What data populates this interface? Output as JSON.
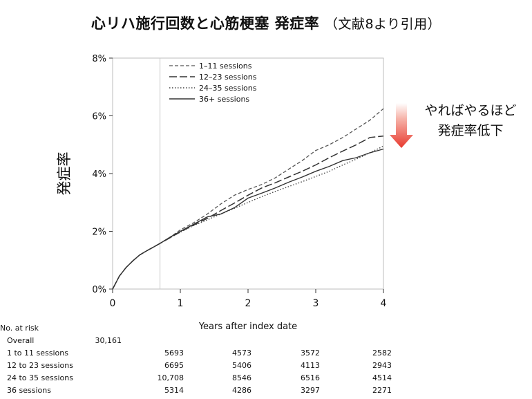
{
  "title": {
    "main": "心リハ施行回数と心筋梗塞 発症率",
    "citation": "（文献8より引用）"
  },
  "annotation": {
    "line1": "やればやるほど",
    "line2": "発症率低下",
    "arrow_color": "#e8392e"
  },
  "chart_data": {
    "type": "line",
    "title": "",
    "xlabel": "Years after index date",
    "ylabel": "発症率",
    "xlim": [
      0,
      4
    ],
    "ylim": [
      0,
      8
    ],
    "x_ticks": [
      "0",
      "1",
      "2",
      "3",
      "4"
    ],
    "y_ticks": [
      "0%",
      "2%",
      "4%",
      "6%",
      "8%"
    ],
    "grid": false,
    "legend_position": "top-left",
    "reference_line_x": 0.7,
    "series": [
      {
        "name": "1–11 sessions",
        "style": "short-dash",
        "x": [
          0,
          0.1,
          0.2,
          0.3,
          0.4,
          0.5,
          0.6,
          0.7,
          0.85,
          1.0,
          1.2,
          1.4,
          1.6,
          1.8,
          2.0,
          2.2,
          2.4,
          2.6,
          2.8,
          3.0,
          3.2,
          3.4,
          3.6,
          3.8,
          4.0
        ],
        "y": [
          0,
          0.45,
          0.75,
          0.98,
          1.18,
          1.32,
          1.45,
          1.58,
          1.8,
          2.05,
          2.3,
          2.6,
          2.95,
          3.25,
          3.45,
          3.62,
          3.85,
          4.15,
          4.45,
          4.8,
          5.0,
          5.25,
          5.55,
          5.85,
          6.25
        ]
      },
      {
        "name": "12–23 sessions",
        "style": "long-dash",
        "x": [
          0,
          0.1,
          0.2,
          0.3,
          0.4,
          0.5,
          0.6,
          0.7,
          0.85,
          1.0,
          1.2,
          1.4,
          1.6,
          1.8,
          2.0,
          2.2,
          2.4,
          2.6,
          2.8,
          3.0,
          3.2,
          3.4,
          3.6,
          3.8,
          4.0
        ],
        "y": [
          0,
          0.45,
          0.75,
          0.98,
          1.18,
          1.32,
          1.45,
          1.58,
          1.78,
          1.98,
          2.22,
          2.45,
          2.72,
          2.98,
          3.25,
          3.5,
          3.68,
          3.88,
          4.08,
          4.3,
          4.55,
          4.78,
          5.0,
          5.25,
          5.3
        ]
      },
      {
        "name": "24–35 sessions",
        "style": "dotted",
        "x": [
          0,
          0.1,
          0.2,
          0.3,
          0.4,
          0.5,
          0.6,
          0.7,
          0.85,
          1.0,
          1.2,
          1.4,
          1.6,
          1.8,
          2.0,
          2.2,
          2.4,
          2.6,
          2.8,
          3.0,
          3.2,
          3.4,
          3.6,
          3.8,
          4.0
        ],
        "y": [
          0,
          0.45,
          0.75,
          0.98,
          1.18,
          1.32,
          1.45,
          1.58,
          1.78,
          1.97,
          2.2,
          2.4,
          2.6,
          2.8,
          3.0,
          3.2,
          3.38,
          3.55,
          3.72,
          3.9,
          4.08,
          4.3,
          4.5,
          4.72,
          4.95
        ]
      },
      {
        "name": "36+ sessions",
        "style": "solid",
        "x": [
          0,
          0.1,
          0.2,
          0.3,
          0.4,
          0.5,
          0.6,
          0.7,
          0.85,
          1.0,
          1.2,
          1.4,
          1.6,
          1.8,
          2.0,
          2.2,
          2.4,
          2.6,
          2.8,
          3.0,
          3.2,
          3.4,
          3.6,
          3.8,
          4.0
        ],
        "y": [
          0,
          0.45,
          0.75,
          0.98,
          1.18,
          1.32,
          1.45,
          1.58,
          1.8,
          2.0,
          2.25,
          2.5,
          2.6,
          2.82,
          3.15,
          3.32,
          3.5,
          3.7,
          3.88,
          4.08,
          4.25,
          4.45,
          4.55,
          4.72,
          4.85
        ]
      }
    ]
  },
  "risk_table": {
    "header": "No. at risk",
    "rows": [
      {
        "label": "Overall",
        "values": [
          "30,161",
          "",
          "",
          "",
          ""
        ]
      },
      {
        "label": "1 to 11 sessions",
        "values": [
          "",
          "5693",
          "4573",
          "3572",
          "2582"
        ]
      },
      {
        "label": "12 to 23 sessions",
        "values": [
          "",
          "6695",
          "5406",
          "4113",
          "2943"
        ]
      },
      {
        "label": "24 to 35 sessions",
        "values": [
          "",
          "10,708",
          "8546",
          "6516",
          "4514"
        ]
      },
      {
        "label": "36 sessions",
        "values": [
          "",
          "5314",
          "4286",
          "3297",
          "2271"
        ]
      }
    ]
  }
}
